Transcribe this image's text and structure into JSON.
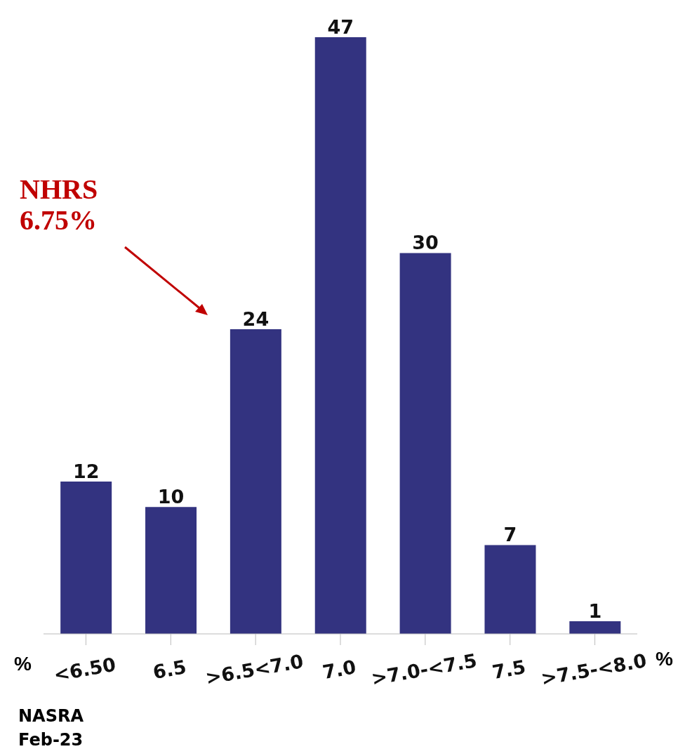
{
  "chart_data": {
    "type": "bar",
    "categories": [
      "<6.50",
      "6.5",
      ">6.5<7.0",
      "7.0",
      ">7.0-<7.5",
      "7.5",
      ">7.5-<8.0"
    ],
    "values": [
      12,
      10,
      24,
      47,
      30,
      7,
      1
    ],
    "color": "#333380",
    "data_labels": true,
    "grid": false,
    "legend": false,
    "annotations": [
      "NHRS\n6.75%",
      "%",
      "%",
      "NASRA\nFeb-23"
    ]
  }
}
